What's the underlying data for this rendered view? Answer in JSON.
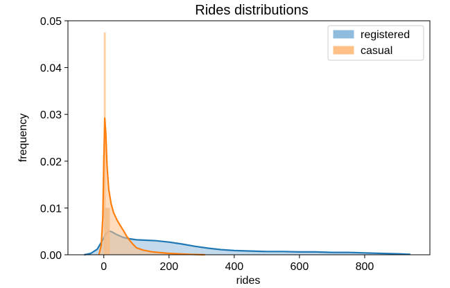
{
  "chart_data": {
    "type": "histogram-kde",
    "title": "Rides distributions",
    "xlabel": "rides",
    "ylabel": "frequency",
    "xlim": [
      -110,
      1000
    ],
    "ylim": [
      0,
      0.05
    ],
    "xticks": [
      0,
      200,
      400,
      600,
      800
    ],
    "yticks": [
      0.0,
      0.01,
      0.02,
      0.03,
      0.04,
      0.05
    ],
    "ytick_labels": [
      "0.00",
      "0.01",
      "0.02",
      "0.03",
      "0.04",
      "0.05"
    ],
    "legend_position": "top-right",
    "grid": false,
    "series": [
      {
        "name": "registered",
        "color": "#1f77b4",
        "fill_color": "#8fbcdd",
        "hist_bins": [
          {
            "x0": 0,
            "x1": 18.5,
            "height": 0.01
          }
        ],
        "kde": [
          [
            -60,
            0.0
          ],
          [
            -40,
            0.0003
          ],
          [
            -20,
            0.0012
          ],
          [
            -5,
            0.003
          ],
          [
            5,
            0.0044
          ],
          [
            15,
            0.0051
          ],
          [
            25,
            0.0049
          ],
          [
            40,
            0.0043
          ],
          [
            60,
            0.0037
          ],
          [
            80,
            0.0034
          ],
          [
            100,
            0.0032
          ],
          [
            130,
            0.0031
          ],
          [
            160,
            0.003
          ],
          [
            200,
            0.0027
          ],
          [
            240,
            0.0023
          ],
          [
            280,
            0.0018
          ],
          [
            320,
            0.0014
          ],
          [
            360,
            0.0011
          ],
          [
            400,
            0.0009
          ],
          [
            450,
            0.0008
          ],
          [
            500,
            0.0007
          ],
          [
            550,
            0.0007
          ],
          [
            600,
            0.0006
          ],
          [
            650,
            0.0006
          ],
          [
            700,
            0.0005
          ],
          [
            750,
            0.0005
          ],
          [
            800,
            0.0004
          ],
          [
            850,
            0.0003
          ],
          [
            900,
            0.0002
          ],
          [
            940,
            0.0001
          ]
        ]
      },
      {
        "name": "casual",
        "color": "#ff7f0e",
        "fill_color": "#ffbf86",
        "hist_bins": [
          {
            "x0": 0,
            "x1": 6,
            "height": 0.0475
          },
          {
            "x0": 6,
            "x1": 18.5,
            "height": 0.01
          }
        ],
        "kde": [
          [
            -15,
            0.0
          ],
          [
            -8,
            0.002
          ],
          [
            -3,
            0.008
          ],
          [
            0,
            0.02
          ],
          [
            3,
            0.0292
          ],
          [
            6,
            0.026
          ],
          [
            10,
            0.019
          ],
          [
            15,
            0.014
          ],
          [
            22,
            0.011
          ],
          [
            30,
            0.009
          ],
          [
            40,
            0.0075
          ],
          [
            50,
            0.0063
          ],
          [
            60,
            0.0052
          ],
          [
            70,
            0.004
          ],
          [
            80,
            0.003
          ],
          [
            90,
            0.0022
          ],
          [
            100,
            0.0015
          ],
          [
            120,
            0.001
          ],
          [
            150,
            0.0006
          ],
          [
            200,
            0.0003
          ],
          [
            260,
            0.0001
          ],
          [
            310,
            0.0
          ]
        ]
      }
    ]
  }
}
